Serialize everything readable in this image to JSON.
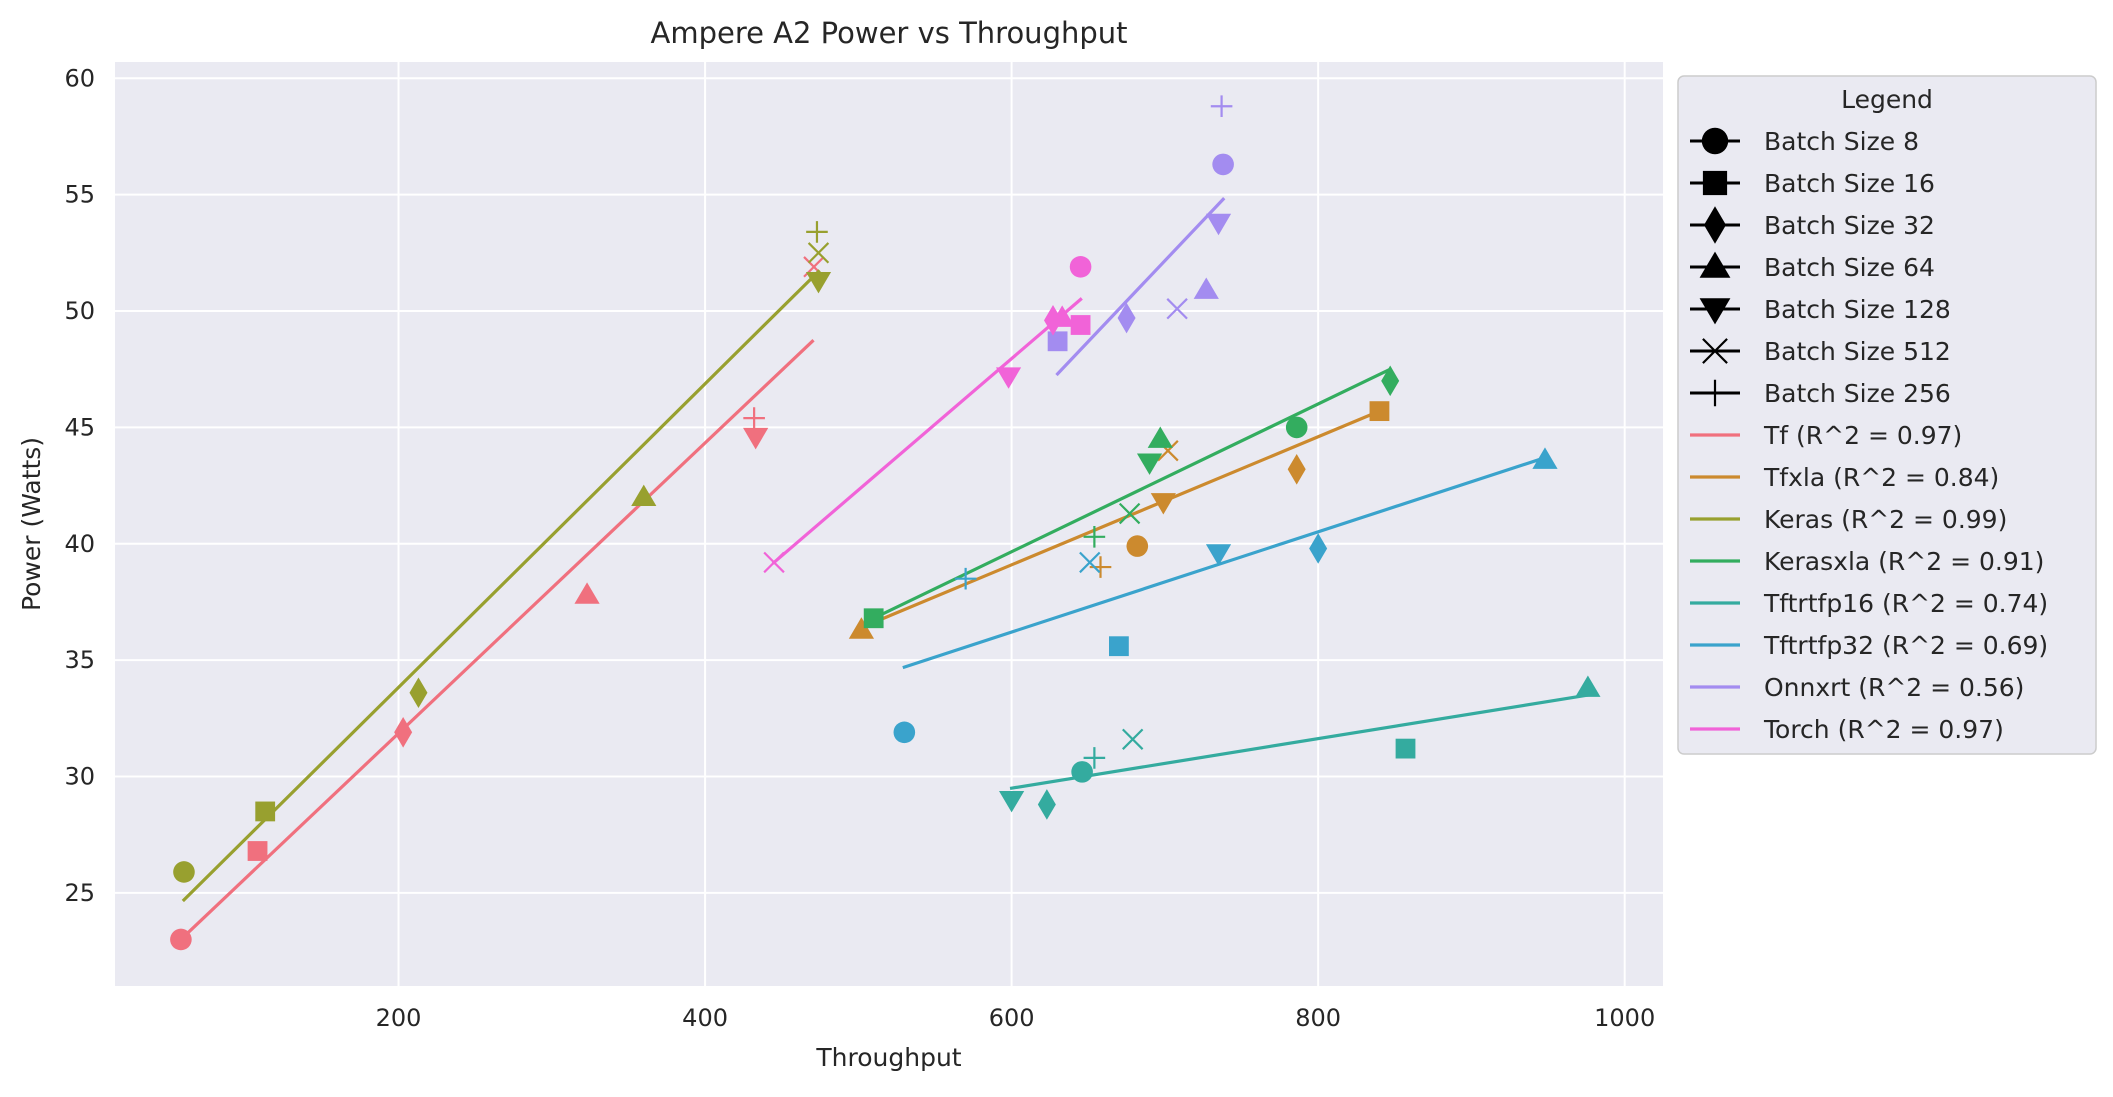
{
  "chart_data": {
    "type": "scatter",
    "title": "Ampere A2 Power vs Throughput",
    "xlabel": "Throughput",
    "ylabel": "Power (Watts)",
    "xlim": [
      15,
      1025
    ],
    "ylim": [
      21,
      60.7
    ],
    "x_ticks": [
      200,
      400,
      600,
      800,
      1000
    ],
    "y_ticks": [
      25,
      30,
      35,
      40,
      45,
      50,
      55,
      60
    ],
    "grid": true,
    "background": "#eaeaf2",
    "legend": {
      "title": "Legend",
      "placement": "outside right",
      "marker_entries": [
        {
          "label": "Batch Size 8",
          "marker": "circle"
        },
        {
          "label": "Batch Size 16",
          "marker": "square"
        },
        {
          "label": "Batch Size 32",
          "marker": "diamond"
        },
        {
          "label": "Batch Size 64",
          "marker": "triangle-up"
        },
        {
          "label": "Batch Size 128",
          "marker": "triangle-down"
        },
        {
          "label": "Batch Size 512",
          "marker": "x"
        },
        {
          "label": "Batch Size 256",
          "marker": "plus"
        }
      ]
    },
    "series": [
      {
        "name": "Tf (R^2 = 0.97)",
        "color": "#f0707e",
        "points": [
          [
            58,
            23.0,
            "circle"
          ],
          [
            108,
            26.8,
            "square"
          ],
          [
            203,
            31.9,
            "diamond"
          ],
          [
            323,
            37.8,
            "triangle-up"
          ],
          [
            433,
            44.6,
            "triangle-down"
          ],
          [
            471,
            51.9,
            "x"
          ],
          [
            432,
            45.4,
            "plus"
          ]
        ],
        "fit": [
          [
            58,
            23.0
          ],
          [
            470,
            48.7
          ]
        ]
      },
      {
        "name": "Tfxla (R^2 = 0.84)",
        "color": "#cc8a2e",
        "points": [
          [
            682,
            39.9,
            "circle"
          ],
          [
            840,
            45.7,
            "square"
          ],
          [
            786,
            43.2,
            "diamond"
          ],
          [
            502,
            36.3,
            "triangle-up"
          ],
          [
            699,
            41.8,
            "triangle-down"
          ],
          [
            702,
            44.0,
            "x"
          ],
          [
            658,
            39.0,
            "plus"
          ]
        ],
        "fit": [
          [
            502,
            36.4
          ],
          [
            840,
            45.7
          ]
        ]
      },
      {
        "name": "Keras (R^2 = 0.99)",
        "color": "#98a02f",
        "points": [
          [
            60,
            25.9,
            "circle"
          ],
          [
            113,
            28.5,
            "square"
          ],
          [
            213,
            33.6,
            "diamond"
          ],
          [
            360,
            42.0,
            "triangle-up"
          ],
          [
            474,
            51.3,
            "triangle-down"
          ],
          [
            474,
            52.5,
            "x"
          ],
          [
            473,
            53.4,
            "plus"
          ]
        ],
        "fit": [
          [
            60,
            24.7
          ],
          [
            474,
            51.7
          ]
        ]
      },
      {
        "name": "Kerasxla (R^2 = 0.91)",
        "color": "#33ad5f",
        "points": [
          [
            786,
            45.0,
            "circle"
          ],
          [
            510,
            36.8,
            "square"
          ],
          [
            847,
            47.0,
            "diamond"
          ],
          [
            697,
            44.5,
            "triangle-up"
          ],
          [
            690,
            43.5,
            "triangle-down"
          ],
          [
            677,
            41.3,
            "x"
          ],
          [
            654,
            40.3,
            "plus"
          ]
        ],
        "fit": [
          [
            510,
            36.8
          ],
          [
            847,
            47.5
          ]
        ]
      },
      {
        "name": "Tftrtfp16 (R^2 = 0.74)",
        "color": "#34ab9f",
        "points": [
          [
            646,
            30.2,
            "circle"
          ],
          [
            857,
            31.2,
            "square"
          ],
          [
            623,
            28.8,
            "diamond"
          ],
          [
            976,
            33.8,
            "triangle-up"
          ],
          [
            600,
            29.0,
            "triangle-down"
          ],
          [
            679,
            31.6,
            "x"
          ],
          [
            654,
            30.8,
            "plus"
          ]
        ],
        "fit": [
          [
            600,
            29.5
          ],
          [
            976,
            33.5
          ]
        ]
      },
      {
        "name": "Tftrtfp32 (R^2 = 0.69)",
        "color": "#3aa3cc",
        "points": [
          [
            530,
            31.9,
            "circle"
          ],
          [
            670,
            35.6,
            "square"
          ],
          [
            800,
            39.8,
            "diamond"
          ],
          [
            948,
            43.6,
            "triangle-up"
          ],
          [
            735,
            39.6,
            "triangle-down"
          ],
          [
            651,
            39.2,
            "x"
          ],
          [
            570,
            38.5,
            "plus"
          ]
        ],
        "fit": [
          [
            530,
            34.7
          ],
          [
            948,
            43.7
          ]
        ]
      },
      {
        "name": "Onnxrt (R^2 = 0.56)",
        "color": "#a38cf0",
        "points": [
          [
            738,
            56.3,
            "circle"
          ],
          [
            630,
            48.7,
            "square"
          ],
          [
            675,
            49.7,
            "diamond"
          ],
          [
            727,
            50.9,
            "triangle-up"
          ],
          [
            735,
            53.8,
            "triangle-down"
          ],
          [
            708,
            50.1,
            "x"
          ],
          [
            737,
            58.8,
            "plus"
          ]
        ],
        "fit": [
          [
            630,
            47.3
          ],
          [
            738,
            54.8
          ]
        ]
      },
      {
        "name": "Torch (R^2 = 0.97)",
        "color": "#f163d8",
        "points": [
          [
            645,
            51.9,
            "circle"
          ],
          [
            645,
            49.4,
            "square"
          ],
          [
            627,
            49.6,
            "diamond"
          ],
          [
            633,
            49.7,
            "triangle-up"
          ],
          [
            598,
            47.2,
            "triangle-down"
          ],
          [
            445,
            39.2,
            "x"
          ]
        ],
        "fit": [
          [
            445,
            39.2
          ],
          [
            645,
            50.5
          ]
        ]
      }
    ]
  }
}
